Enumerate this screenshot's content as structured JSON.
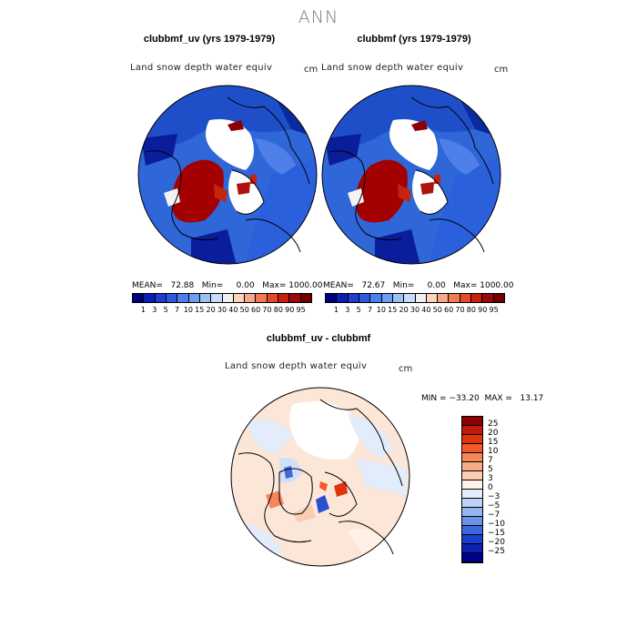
{
  "title": "ANN",
  "panels": [
    {
      "title": "clubbmf_uv (yrs 1979-1979)",
      "variable": "Land snow depth water equiv",
      "unit": "cm",
      "stats": "MEAN=   72.88   Min=     0.00   Max= 1000.00"
    },
    {
      "title": "clubbmf (yrs 1979-1979)",
      "variable": "Land snow depth water equiv",
      "unit": "cm",
      "stats": "MEAN=   72.67   Min=     0.00   Max= 1000.00"
    }
  ],
  "top_colorbar": {
    "colors": [
      "#00007e",
      "#0a1fb0",
      "#1d3fd0",
      "#2d5be0",
      "#4a7ff0",
      "#6e9cf0",
      "#9cbff5",
      "#c7dcf8",
      "#f0f0f0",
      "#fbd3bf",
      "#f6a98a",
      "#f07c57",
      "#e34a28",
      "#c8200f",
      "#9b0a08",
      "#6e0000"
    ],
    "labels": [
      "1",
      "3",
      "5",
      "7",
      "10",
      "15",
      "20",
      "30",
      "40",
      "50",
      "60",
      "70",
      "80",
      "90",
      "95"
    ]
  },
  "diff": {
    "title": "clubbmf_uv - clubbmf",
    "variable": "Land snow depth water equiv",
    "unit": "cm",
    "minmax": "MIN = −33.20  MAX =   13.17"
  },
  "diff_colorbar": {
    "colors": [
      "#8b0000",
      "#c01a0a",
      "#e0340f",
      "#f25a2a",
      "#f5875a",
      "#f8ab86",
      "#fbcdb3",
      "#fff1e6",
      "#e4eefc",
      "#bcd3f5",
      "#95b6ee",
      "#6a93e6",
      "#3f68dd",
      "#1a3fcf",
      "#0b22b0",
      "#00008e"
    ],
    "labels": [
      "25",
      "20",
      "15",
      "10",
      "7",
      "5",
      "3",
      "0",
      "−3",
      "−5",
      "−7",
      "−10",
      "−15",
      "−20",
      "−25"
    ]
  }
}
